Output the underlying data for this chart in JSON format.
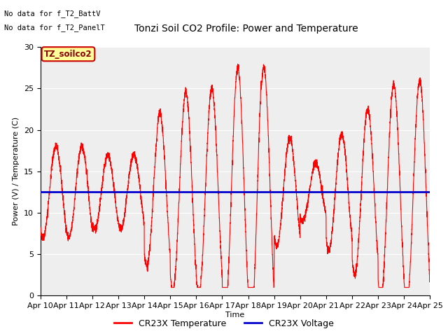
{
  "title": "Tonzi Soil CO2 Profile: Power and Temperature",
  "ylabel": "Power (V) / Temperature (C)",
  "xlabel": "Time",
  "ylim": [
    0,
    30
  ],
  "yticks": [
    0,
    5,
    10,
    15,
    20,
    25,
    30
  ],
  "voltage_value": 12.5,
  "voltage_color": "#0000cc",
  "temp_color": "#ff0000",
  "fig_bg_color": "#ffffff",
  "plot_bg_color": "#eeeeee",
  "no_data_text1": "No data for f_T2_BattV",
  "no_data_text2": "No data for f_T2_PanelT",
  "legend_label_text": "TZ_soilco2",
  "legend_temp": "CR23X Temperature",
  "legend_volt": "CR23X Voltage",
  "x_tick_labels": [
    "Apr 10",
    "Apr 11",
    "Apr 12",
    "Apr 13",
    "Apr 14",
    "Apr 15",
    "Apr 16",
    "Apr 17",
    "Apr 18",
    "Apr 19",
    "Apr 20",
    "Apr 21",
    "Apr 22",
    "Apr 23",
    "Apr 24",
    "Apr 25"
  ],
  "title_fontsize": 10,
  "label_fontsize": 8,
  "tick_fontsize": 8
}
